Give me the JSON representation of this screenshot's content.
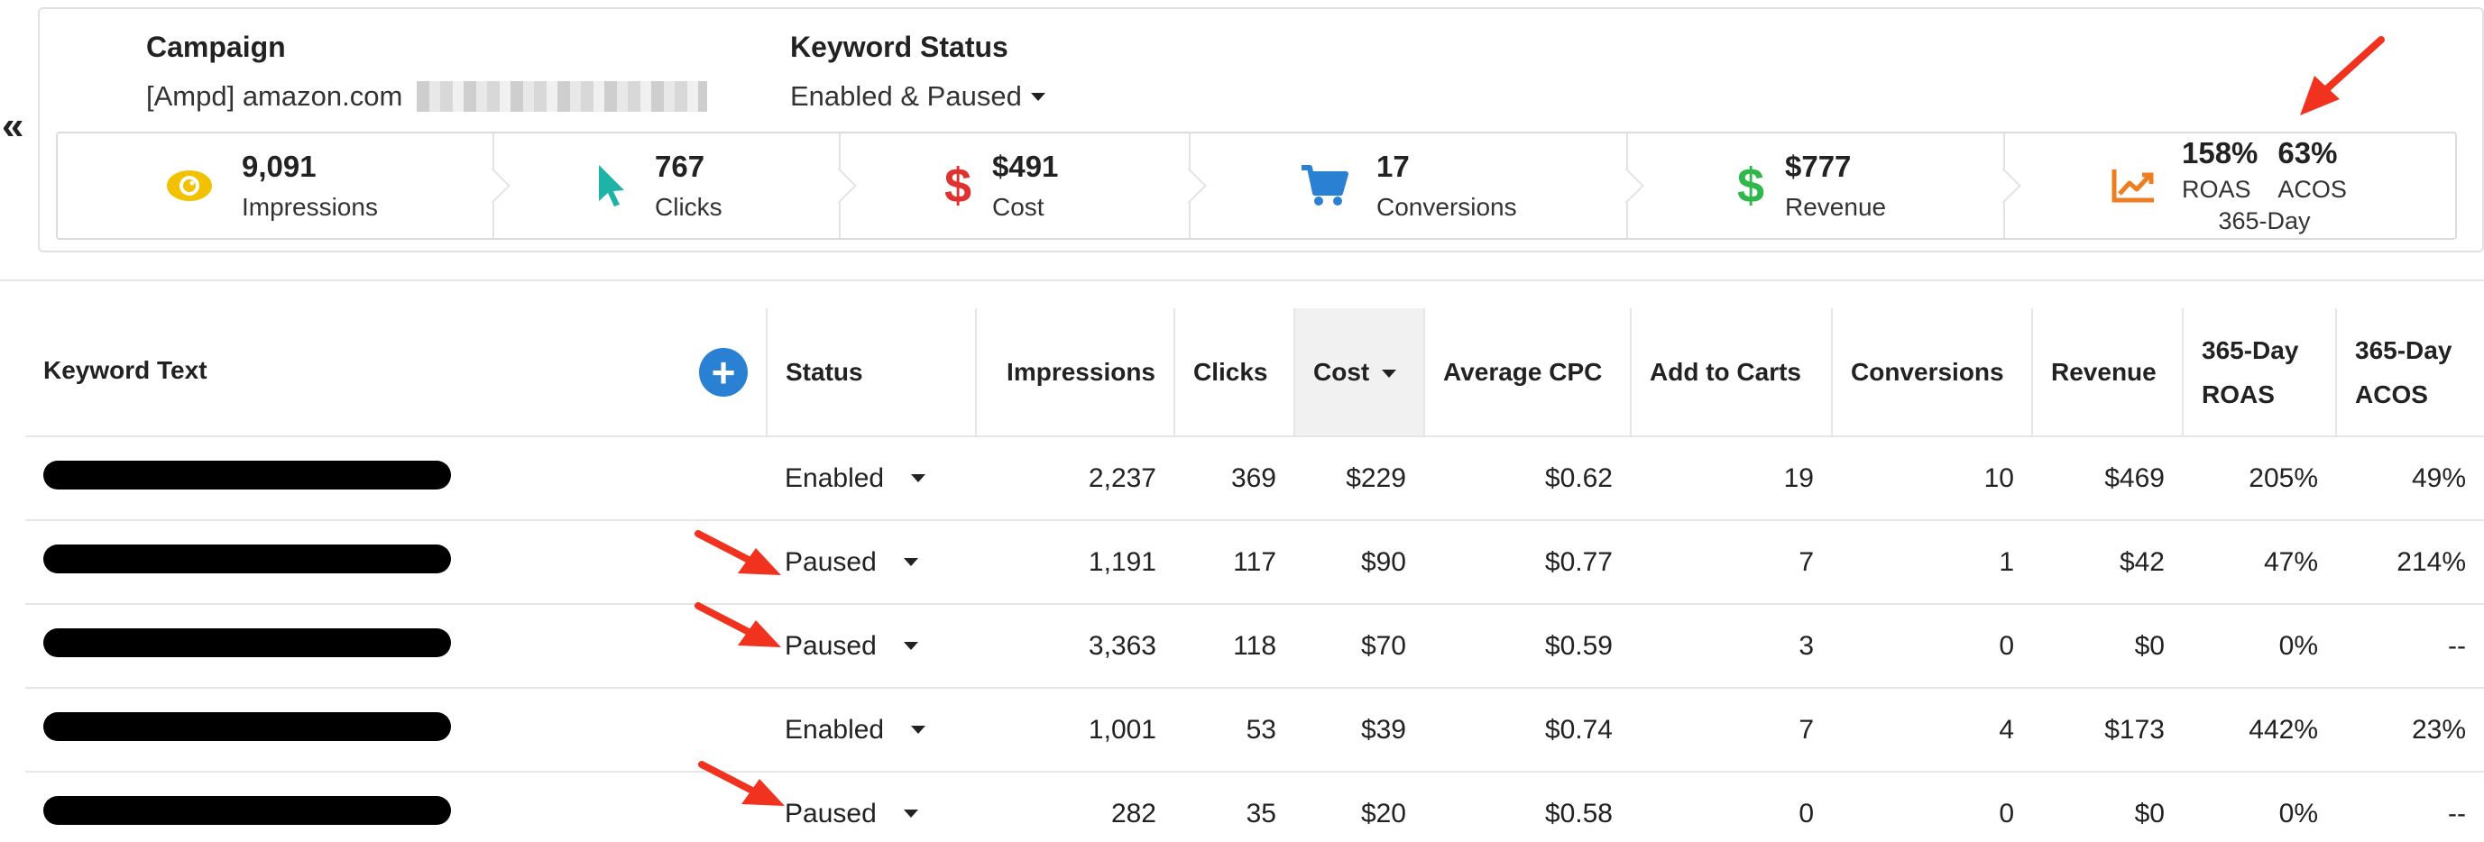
{
  "collapse_glyph": "«",
  "filters": {
    "campaign": {
      "label": "Campaign",
      "value": "[Ampd] amazon.com"
    },
    "keyword_status": {
      "label": "Keyword Status",
      "value": "Enabled & Paused"
    }
  },
  "metrics": [
    {
      "icon": "eye-icon",
      "value": "9,091",
      "label": "Impressions",
      "color": "#f2c200"
    },
    {
      "icon": "cursor-icon",
      "value": "767",
      "label": "Clicks",
      "color": "#1db3a6"
    },
    {
      "icon": "dollar-icon",
      "value": "$491",
      "label": "Cost",
      "color": "#e03131"
    },
    {
      "icon": "cart-icon",
      "value": "17",
      "label": "Conversions",
      "color": "#2a80d2"
    },
    {
      "icon": "dollar-icon",
      "value": "$777",
      "label": "Revenue",
      "color": "#2eb84a"
    }
  ],
  "roas_metric": {
    "icon": "trending-chart-icon",
    "color": "#ef7d22",
    "roas_value": "158%",
    "roas_label": "ROAS",
    "acos_value": "63%",
    "acos_label": "ACOS",
    "period": "365-Day"
  },
  "table": {
    "headers": {
      "keyword_text": "Keyword Text",
      "status": "Status",
      "impressions": "Impressions",
      "clicks": "Clicks",
      "cost": "Cost",
      "average_cpc": "Average CPC",
      "add_to_carts": "Add to Carts",
      "conversions": "Conversions",
      "revenue": "Revenue",
      "roas_line1": "365-Day",
      "roas_line2": "ROAS",
      "acos_line1": "365-Day",
      "acos_line2": "ACOS"
    },
    "add_button_glyph": "+",
    "rows": [
      {
        "status": "Enabled",
        "impressions": "2,237",
        "clicks": "369",
        "cost": "$229",
        "average_cpc": "$0.62",
        "add_to_carts": "19",
        "conversions": "10",
        "revenue": "$469",
        "roas": "205%",
        "acos": "49%"
      },
      {
        "status": "Paused",
        "impressions": "1,191",
        "clicks": "117",
        "cost": "$90",
        "average_cpc": "$0.77",
        "add_to_carts": "7",
        "conversions": "1",
        "revenue": "$42",
        "roas": "47%",
        "acos": "214%"
      },
      {
        "status": "Paused",
        "impressions": "3,363",
        "clicks": "118",
        "cost": "$70",
        "average_cpc": "$0.59",
        "add_to_carts": "3",
        "conversions": "0",
        "revenue": "$0",
        "roas": "0%",
        "acos": "--"
      },
      {
        "status": "Enabled",
        "impressions": "1,001",
        "clicks": "53",
        "cost": "$39",
        "average_cpc": "$0.74",
        "add_to_carts": "7",
        "conversions": "4",
        "revenue": "$173",
        "roas": "442%",
        "acos": "23%"
      },
      {
        "status": "Paused",
        "impressions": "282",
        "clicks": "35",
        "cost": "$20",
        "average_cpc": "$0.58",
        "add_to_carts": "0",
        "conversions": "0",
        "revenue": "$0",
        "roas": "0%",
        "acos": "--"
      }
    ]
  },
  "annotation_color": "#f0321e"
}
